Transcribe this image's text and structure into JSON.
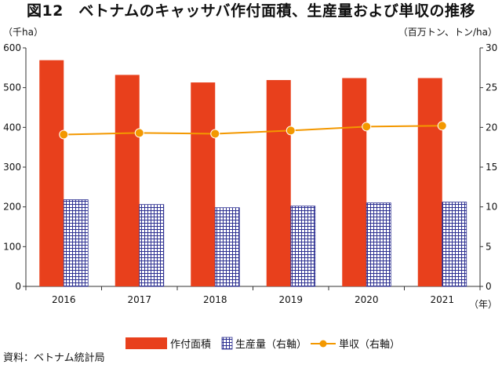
{
  "title": "図12　ベトナムのキャッサバ作付面積、生産量および単収の推移",
  "source": "資料：ベトナム統計局",
  "chart_data": {
    "type": "bar",
    "categories": [
      "2016",
      "2017",
      "2018",
      "2019",
      "2020",
      "2021"
    ],
    "xlabel": "（年）",
    "left_axis": {
      "unit_label": "（千ha）",
      "range": [
        0,
        600
      ],
      "ticks": [
        "0",
        "100",
        "200",
        "300",
        "400",
        "500",
        "600"
      ]
    },
    "right_axis": {
      "unit_label": "（百万トン、トン/ha）",
      "range": [
        0,
        30
      ],
      "ticks": [
        "0",
        "5",
        "10",
        "15",
        "20",
        "25",
        "30"
      ]
    },
    "series": [
      {
        "name": "作付面積",
        "type": "bar",
        "axis": "left",
        "color": "#e8401c",
        "values": [
          569,
          532,
          513,
          519,
          524,
          524
        ]
      },
      {
        "name": "生産量（右軸）",
        "type": "bar",
        "axis": "right",
        "pattern": "grid",
        "color": "#2e3192",
        "values": [
          10.9,
          10.3,
          9.9,
          10.1,
          10.5,
          10.6
        ]
      },
      {
        "name": "単収（右軸）",
        "type": "line",
        "axis": "right",
        "color": "#f39800",
        "values": [
          19.1,
          19.3,
          19.2,
          19.6,
          20.1,
          20.2
        ]
      }
    ],
    "legend_position": "bottom",
    "grid": false
  }
}
